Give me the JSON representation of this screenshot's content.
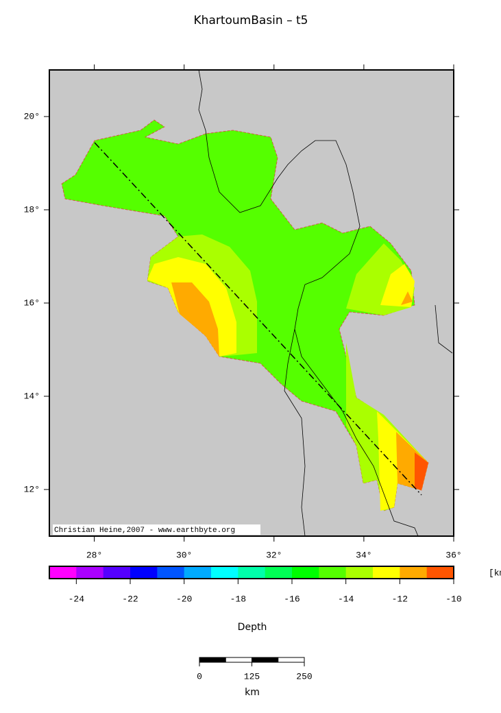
{
  "title": "KhartoumBasin – t5",
  "map": {
    "xlim": [
      27,
      36
    ],
    "ylim": [
      11,
      21
    ],
    "xticks": [
      {
        "value": 28,
        "label": "28°"
      },
      {
        "value": 30,
        "label": "30°"
      },
      {
        "value": 32,
        "label": "32°"
      },
      {
        "value": 34,
        "label": "34°"
      },
      {
        "value": 36,
        "label": "36°"
      }
    ],
    "yticks": [
      {
        "value": 12,
        "label": "12°"
      },
      {
        "value": 14,
        "label": "14°"
      },
      {
        "value": 16,
        "label": "16°"
      },
      {
        "value": 18,
        "label": "18°"
      },
      {
        "value": 20,
        "label": "20°"
      }
    ],
    "credit": "Christian Heine,2007 - www.earthbyte.org"
  },
  "colorbar": {
    "range": [
      -25,
      -10
    ],
    "ticks": [
      -24,
      -22,
      -20,
      -18,
      -16,
      -14,
      -12,
      -10
    ],
    "unit": "[km]",
    "label": "Depth",
    "colors": [
      "#ff00ff",
      "#aa00ff",
      "#5500ff",
      "#0000ff",
      "#0055ff",
      "#00aaff",
      "#00ffff",
      "#00ffaa",
      "#00ff55",
      "#00ff00",
      "#55ff00",
      "#aaff00",
      "#ffff00",
      "#ffaa00",
      "#ff5500"
    ]
  },
  "scale_bar": {
    "ticks": [
      0,
      125,
      250
    ],
    "unit": "km"
  }
}
